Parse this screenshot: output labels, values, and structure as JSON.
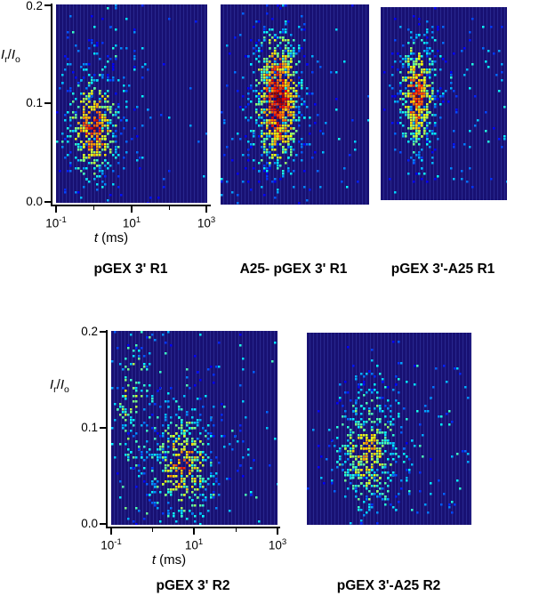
{
  "figure": {
    "panel_bg": "#181173",
    "stripe_color": "rgba(100,120,240,0.22)",
    "axis_color": "#000000"
  },
  "labels": {
    "ylabel": {
      "i1": "I",
      "s1": "r",
      "sep": "/",
      "i2": "I",
      "s2": "o"
    },
    "xlabel": {
      "it": "t",
      "rest": " (ms)"
    },
    "yticks": [
      "0.2",
      "0.1",
      "0.0"
    ],
    "xticks": [
      {
        "base": "10",
        "exp": "-1"
      },
      {
        "base": "10",
        "exp": "1"
      },
      {
        "base": "10",
        "exp": "3"
      }
    ]
  },
  "chart_data": [
    {
      "type": "heatmap",
      "title": "pGEX 3' R1",
      "xlabel": "t (ms)",
      "ylabel": "Ir/Io",
      "x_scale": "log",
      "xlim": [
        0.1,
        1000
      ],
      "ylim": [
        0,
        0.2
      ],
      "colormap": "jet",
      "legend": "none",
      "grid": "off",
      "seed": 11,
      "clusters": [
        {
          "name": "halo",
          "center_t_ms": 1.0,
          "center_ratio": 0.075,
          "sigma_logt": 0.7,
          "sigma_ratio": 0.05,
          "n": 130,
          "peak": 0.4
        },
        {
          "name": "main",
          "center_t_ms": 1.0,
          "center_ratio": 0.075,
          "sigma_logt": 0.33,
          "sigma_ratio": 0.027,
          "n": 330,
          "peak": 0.88
        }
      ],
      "noise": [
        {
          "n": 70,
          "t_range": [
            0.1,
            30
          ],
          "ratio_range": [
            0.05,
            0.2
          ],
          "value_range": [
            0.15,
            0.45
          ]
        },
        {
          "n": 30,
          "t_range": [
            0.1,
            1000
          ],
          "ratio_range": [
            0.0,
            0.2
          ],
          "value_range": [
            0.12,
            0.35
          ]
        }
      ]
    },
    {
      "type": "heatmap",
      "title": "A25- pGEX 3' R1",
      "xlabel": "t (ms)",
      "ylabel": "Ir/Io",
      "x_scale": "log",
      "xlim": [
        0.1,
        1000
      ],
      "ylim": [
        0,
        0.2
      ],
      "colormap": "jet",
      "legend": "none",
      "grid": "off",
      "seed": 22,
      "clusters": [
        {
          "name": "halo",
          "center_t_ms": 3.5,
          "center_ratio": 0.1,
          "sigma_logt": 0.55,
          "sigma_ratio": 0.05,
          "n": 230,
          "peak": 0.42
        },
        {
          "name": "main",
          "center_t_ms": 3.5,
          "center_ratio": 0.105,
          "sigma_logt": 0.3,
          "sigma_ratio": 0.034,
          "n": 650,
          "peak": 1.0
        }
      ],
      "noise": [
        {
          "n": 70,
          "t_range": [
            0.1,
            1000
          ],
          "ratio_range": [
            0.0,
            0.2
          ],
          "value_range": [
            0.12,
            0.4
          ]
        }
      ]
    },
    {
      "type": "heatmap",
      "title": "pGEX 3'-A25 R1",
      "xlabel": "t (ms)",
      "ylabel": "Ir/Io",
      "x_scale": "log",
      "xlim": [
        0.1,
        1000
      ],
      "ylim": [
        0,
        0.2
      ],
      "colormap": "jet",
      "legend": "none",
      "grid": "off",
      "seed": 33,
      "clusters": [
        {
          "name": "halo",
          "center_t_ms": 1.5,
          "center_ratio": 0.105,
          "sigma_logt": 0.45,
          "sigma_ratio": 0.045,
          "n": 150,
          "peak": 0.42
        },
        {
          "name": "main",
          "center_t_ms": 1.5,
          "center_ratio": 0.108,
          "sigma_logt": 0.27,
          "sigma_ratio": 0.028,
          "n": 390,
          "peak": 0.92
        }
      ],
      "noise": [
        {
          "n": 60,
          "t_range": [
            2,
            1000
          ],
          "ratio_range": [
            0.01,
            0.18
          ],
          "value_range": [
            0.12,
            0.42
          ]
        },
        {
          "n": 25,
          "t_range": [
            0.1,
            1000
          ],
          "ratio_range": [
            0.0,
            0.2
          ],
          "value_range": [
            0.12,
            0.35
          ]
        }
      ]
    },
    {
      "type": "heatmap",
      "title": "pGEX 3' R2",
      "xlabel": "t (ms)",
      "ylabel": "Ir/Io",
      "x_scale": "log",
      "xlim": [
        0.1,
        1000
      ],
      "ylim": [
        0,
        0.2
      ],
      "colormap": "jet",
      "legend": "none",
      "grid": "off",
      "seed": 44,
      "clusters": [
        {
          "name": "left-tail",
          "center_t_ms": 0.3,
          "center_ratio": 0.13,
          "sigma_logt": 0.28,
          "sigma_ratio": 0.055,
          "n": 150,
          "peak": 0.55
        },
        {
          "name": "halo",
          "center_t_ms": 5,
          "center_ratio": 0.065,
          "sigma_logt": 0.65,
          "sigma_ratio": 0.045,
          "n": 190,
          "peak": 0.5
        },
        {
          "name": "main",
          "center_t_ms": 5,
          "center_ratio": 0.062,
          "sigma_logt": 0.4,
          "sigma_ratio": 0.03,
          "n": 270,
          "peak": 0.78
        }
      ],
      "noise": [
        {
          "n": 100,
          "t_range": [
            0.1,
            1000
          ],
          "ratio_range": [
            0.0,
            0.2
          ],
          "value_range": [
            0.15,
            0.5
          ]
        }
      ]
    },
    {
      "type": "heatmap",
      "title": "pGEX 3'-A25 R2",
      "xlabel": "t (ms)",
      "ylabel": "Ir/Io",
      "x_scale": "log",
      "xlim": [
        0.1,
        1000
      ],
      "ylim": [
        0,
        0.2
      ],
      "colormap": "jet",
      "legend": "none",
      "grid": "off",
      "seed": 55,
      "clusters": [
        {
          "name": "halo",
          "center_t_ms": 3,
          "center_ratio": 0.075,
          "sigma_logt": 0.6,
          "sigma_ratio": 0.05,
          "n": 170,
          "peak": 0.45
        },
        {
          "name": "main",
          "center_t_ms": 3,
          "center_ratio": 0.075,
          "sigma_logt": 0.38,
          "sigma_ratio": 0.032,
          "n": 330,
          "peak": 0.72
        }
      ],
      "noise": [
        {
          "n": 110,
          "t_range": [
            1.5,
            900
          ],
          "ratio_range": [
            0.01,
            0.17
          ],
          "value_range": [
            0.15,
            0.45
          ]
        }
      ]
    }
  ]
}
